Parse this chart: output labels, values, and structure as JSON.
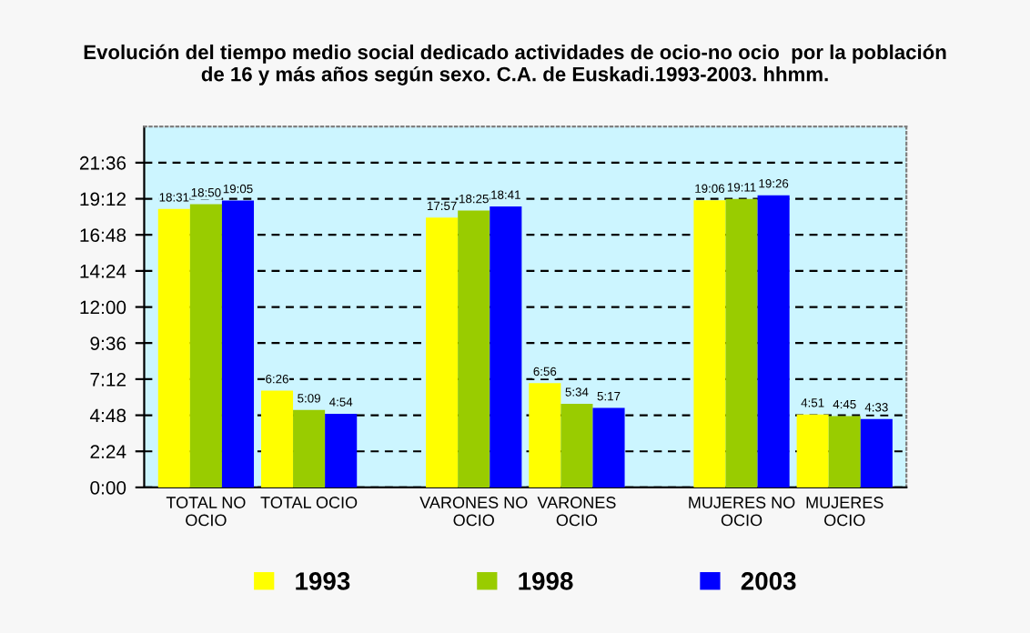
{
  "chart_data": {
    "type": "bar",
    "title": "Evolución del tiempo medio social dedicado actividades de ocio-no ocio  por la población\nde 16 y más años según sexo. C.A. de Euskadi.1993-2003. hhmm.",
    "categories": [
      "TOTAL NO\nOCIO",
      "TOTAL OCIO",
      "VARONES NO\nOCIO",
      "VARONES\nOCIO",
      "MUJERES NO\nOCIO",
      "MUJERES\nOCIO"
    ],
    "series": [
      {
        "name": "1993",
        "color": "#ffff00",
        "values": [
          18.517,
          6.433,
          17.95,
          6.933,
          19.1,
          4.85
        ],
        "value_labels": [
          "18:31",
          "6:26",
          "17:57",
          "6:56",
          "19:06",
          "4:51"
        ]
      },
      {
        "name": "1998",
        "color": "#99cc00",
        "values": [
          18.833,
          5.15,
          18.417,
          5.567,
          19.183,
          4.75
        ],
        "value_labels": [
          "18:50",
          "5:09",
          "18:25",
          "5:34",
          "19:11",
          "4:45"
        ]
      },
      {
        "name": "2003",
        "color": "#0000ff",
        "values": [
          19.083,
          4.9,
          18.683,
          5.283,
          19.433,
          4.55
        ],
        "value_labels": [
          "19:05",
          "4:54",
          "18:41",
          "5:17",
          "19:26",
          "4:33"
        ]
      }
    ],
    "ylim": [
      0,
      24
    ],
    "yticks": [
      {
        "value": 0,
        "label": "0:00"
      },
      {
        "value": 2.4,
        "label": "2:24"
      },
      {
        "value": 4.8,
        "label": "4:48"
      },
      {
        "value": 7.2,
        "label": "7:12"
      },
      {
        "value": 9.6,
        "label": "9:36"
      },
      {
        "value": 12,
        "label": "12:00"
      },
      {
        "value": 14.4,
        "label": "14:24"
      },
      {
        "value": 16.8,
        "label": "16:48"
      },
      {
        "value": 19.2,
        "label": "19:12"
      },
      {
        "value": 21.6,
        "label": "21:36"
      }
    ],
    "grid": "y",
    "legend": "bottom"
  }
}
